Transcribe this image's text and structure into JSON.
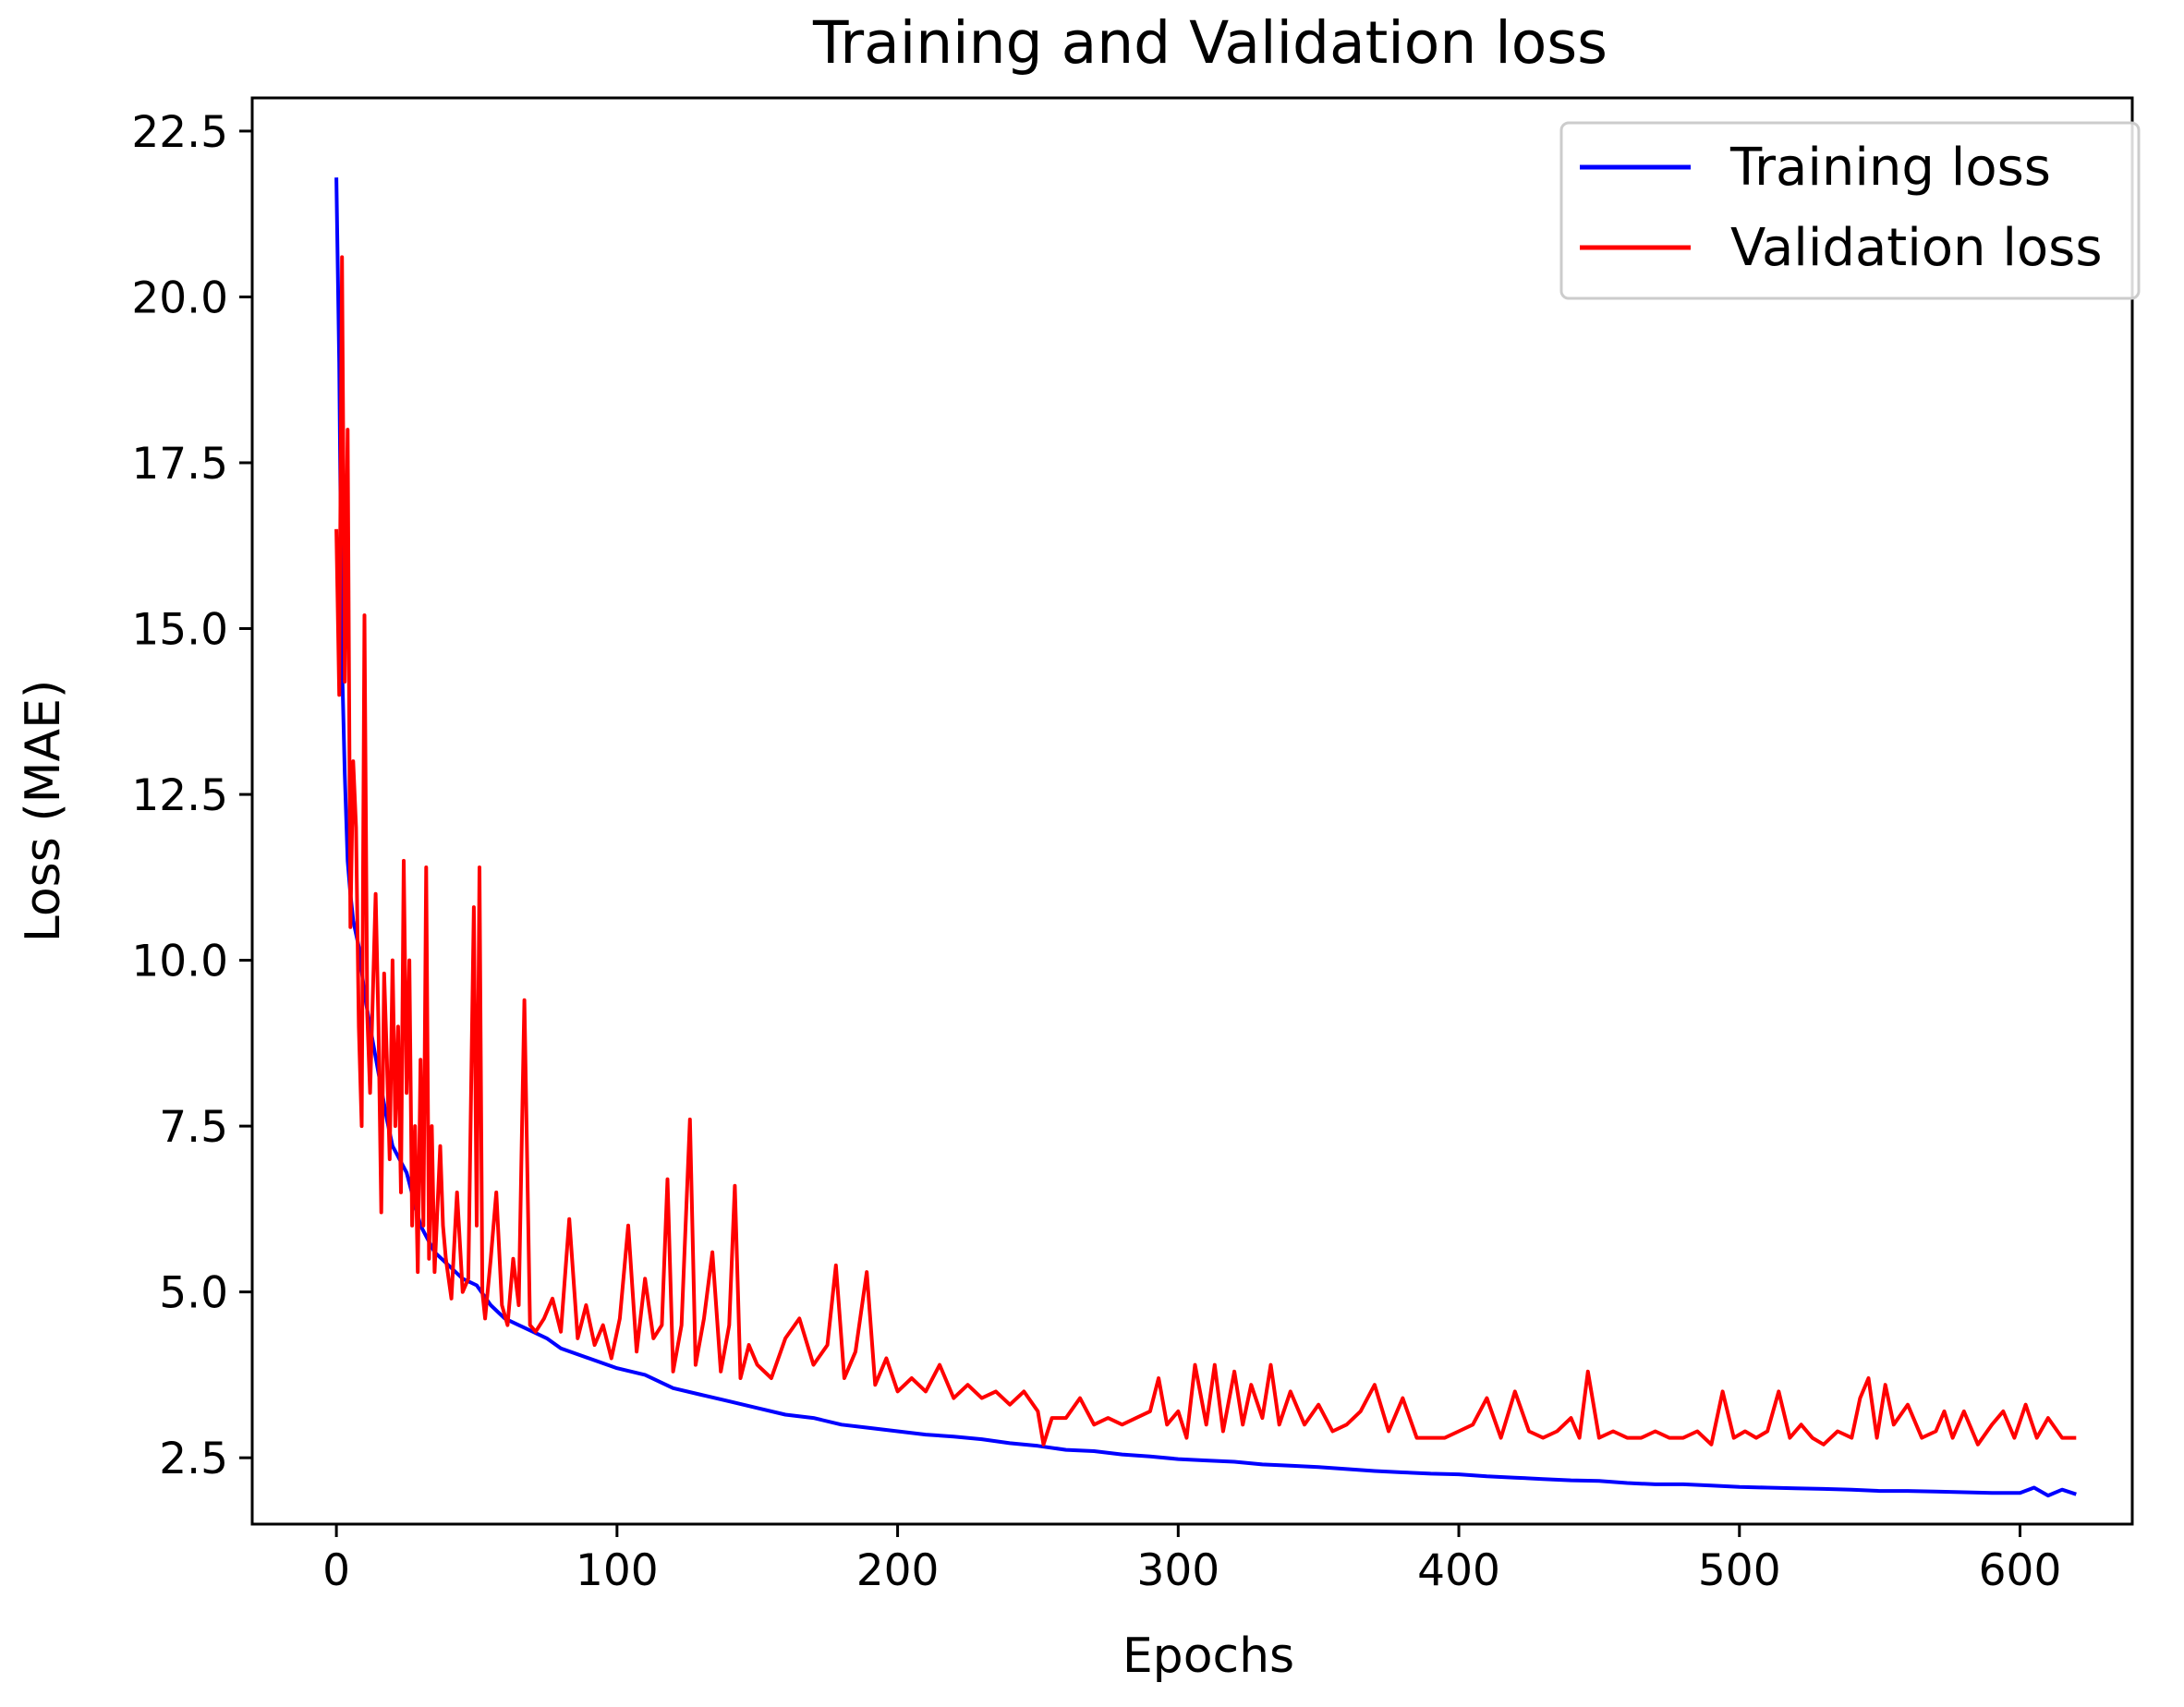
{
  "chart_data": {
    "type": "line",
    "title": "Training and Validation loss",
    "xlabel": "Epochs",
    "ylabel": "Loss (MAE)",
    "xlim": [
      -30,
      640
    ],
    "ylim": [
      1.5,
      23.0
    ],
    "xticks": [
      0,
      100,
      200,
      300,
      400,
      500,
      600
    ],
    "xtick_labels": [
      "0",
      "100",
      "200",
      "300",
      "400",
      "500",
      "600"
    ],
    "yticks": [
      2.5,
      5.0,
      7.5,
      10.0,
      12.5,
      15.0,
      17.5,
      20.0,
      22.5
    ],
    "ytick_labels": [
      "2.5",
      "5.0",
      "7.5",
      "10.0",
      "12.5",
      "15.0",
      "17.5",
      "20.0",
      "22.5"
    ],
    "grid": false,
    "legend_position": "top-right",
    "series": [
      {
        "name": "Training loss",
        "color": "#0000ff",
        "x": [
          0,
          1,
          2,
          3,
          4,
          5,
          6,
          8,
          10,
          12,
          15,
          18,
          20,
          25,
          30,
          35,
          40,
          45,
          50,
          55,
          60,
          65,
          70,
          75,
          80,
          90,
          100,
          110,
          120,
          130,
          140,
          150,
          160,
          170,
          180,
          190,
          200,
          210,
          220,
          230,
          240,
          250,
          260,
          270,
          280,
          290,
          300,
          310,
          320,
          330,
          340,
          350,
          360,
          370,
          380,
          390,
          400,
          410,
          420,
          430,
          440,
          450,
          460,
          470,
          480,
          490,
          500,
          510,
          520,
          530,
          540,
          550,
          560,
          570,
          580,
          590,
          600,
          605,
          610,
          615,
          620
        ],
        "values": [
          21.8,
          19.0,
          14.5,
          12.8,
          11.5,
          11.0,
          10.6,
          10.2,
          9.5,
          9.0,
          8.3,
          7.6,
          7.2,
          6.8,
          6.0,
          5.6,
          5.4,
          5.2,
          5.1,
          4.8,
          4.6,
          4.5,
          4.4,
          4.3,
          4.15,
          4.0,
          3.85,
          3.75,
          3.55,
          3.45,
          3.35,
          3.25,
          3.15,
          3.1,
          3.0,
          2.95,
          2.9,
          2.85,
          2.82,
          2.78,
          2.72,
          2.68,
          2.62,
          2.6,
          2.55,
          2.52,
          2.48,
          2.46,
          2.44,
          2.4,
          2.38,
          2.36,
          2.33,
          2.3,
          2.28,
          2.26,
          2.25,
          2.22,
          2.2,
          2.18,
          2.16,
          2.15,
          2.12,
          2.1,
          2.1,
          2.08,
          2.06,
          2.05,
          2.04,
          2.03,
          2.02,
          2.0,
          2.0,
          1.99,
          1.98,
          1.97,
          1.97,
          2.05,
          1.93,
          2.02,
          1.95
        ]
      },
      {
        "name": "Validation loss",
        "color": "#ff0000",
        "x": [
          0,
          1,
          2,
          3,
          4,
          5,
          6,
          7,
          8,
          9,
          10,
          11,
          12,
          13,
          14,
          15,
          16,
          17,
          18,
          19,
          20,
          21,
          22,
          23,
          24,
          25,
          26,
          27,
          28,
          29,
          30,
          31,
          32,
          33,
          34,
          35,
          37,
          38,
          39,
          41,
          43,
          45,
          47,
          49,
          50,
          51,
          52,
          53,
          55,
          57,
          59,
          61,
          63,
          65,
          67,
          69,
          71,
          74,
          77,
          80,
          83,
          86,
          89,
          92,
          95,
          98,
          101,
          104,
          107,
          110,
          113,
          116,
          118,
          120,
          123,
          126,
          128,
          131,
          134,
          137,
          140,
          142,
          144,
          147,
          150,
          155,
          160,
          165,
          170,
          175,
          178,
          181,
          185,
          189,
          192,
          196,
          200,
          205,
          210,
          215,
          220,
          225,
          230,
          235,
          240,
          245,
          250,
          252,
          255,
          260,
          265,
          270,
          275,
          280,
          285,
          290,
          293,
          296,
          300,
          303,
          306,
          310,
          313,
          316,
          320,
          323,
          326,
          330,
          333,
          336,
          340,
          345,
          350,
          355,
          360,
          365,
          370,
          375,
          380,
          385,
          390,
          395,
          400,
          405,
          410,
          415,
          420,
          425,
          430,
          435,
          440,
          443,
          446,
          450,
          455,
          460,
          465,
          470,
          475,
          480,
          485,
          490,
          494,
          498,
          502,
          506,
          510,
          514,
          518,
          522,
          526,
          530,
          535,
          540,
          543,
          546,
          549,
          552,
          555,
          560,
          565,
          570,
          573,
          576,
          580,
          585,
          590,
          594,
          598,
          602,
          606,
          610,
          615,
          620
        ],
        "values": [
          16.5,
          14.0,
          20.6,
          14.2,
          18.0,
          10.5,
          13.0,
          12.0,
          9.0,
          7.5,
          15.2,
          9.2,
          8.0,
          9.5,
          11.0,
          9.0,
          6.2,
          9.8,
          8.5,
          7.0,
          10.0,
          7.5,
          9.0,
          6.5,
          11.5,
          8.0,
          10.0,
          6.0,
          7.5,
          5.3,
          8.5,
          6.0,
          11.4,
          5.5,
          7.5,
          5.3,
          7.2,
          6.0,
          5.5,
          4.9,
          6.5,
          5.0,
          5.2,
          10.8,
          6.0,
          11.4,
          5.0,
          4.6,
          5.5,
          6.5,
          4.8,
          4.5,
          5.5,
          4.8,
          9.4,
          4.5,
          4.4,
          4.6,
          4.9,
          4.4,
          6.1,
          4.3,
          4.8,
          4.2,
          4.5,
          4.0,
          4.6,
          6.0,
          4.1,
          5.2,
          4.3,
          4.5,
          6.7,
          3.8,
          4.5,
          7.6,
          3.9,
          4.6,
          5.6,
          3.8,
          4.5,
          6.6,
          3.7,
          4.2,
          3.9,
          3.7,
          4.3,
          4.6,
          3.9,
          4.2,
          5.4,
          3.7,
          4.1,
          5.3,
          3.6,
          4.0,
          3.5,
          3.7,
          3.5,
          3.9,
          3.4,
          3.6,
          3.4,
          3.5,
          3.3,
          3.5,
          3.2,
          2.7,
          3.1,
          3.1,
          3.4,
          3.0,
          3.1,
          3.0,
          3.1,
          3.2,
          3.7,
          3.0,
          3.2,
          2.8,
          3.9,
          3.0,
          3.9,
          2.9,
          3.8,
          3.0,
          3.6,
          3.1,
          3.9,
          3.0,
          3.5,
          3.0,
          3.3,
          2.9,
          3.0,
          3.2,
          3.6,
          2.9,
          3.4,
          2.8,
          2.8,
          2.8,
          2.9,
          3.0,
          3.4,
          2.8,
          3.5,
          2.9,
          2.8,
          2.9,
          3.1,
          2.8,
          3.8,
          2.8,
          2.9,
          2.8,
          2.8,
          2.9,
          2.8,
          2.8,
          2.9,
          2.7,
          3.5,
          2.8,
          2.9,
          2.8,
          2.9,
          3.5,
          2.8,
          3.0,
          2.8,
          2.7,
          2.9,
          2.8,
          3.4,
          3.7,
          2.8,
          3.6,
          3.0,
          3.3,
          2.8,
          2.9,
          3.2,
          2.8,
          3.2,
          2.7,
          3.0,
          3.2,
          2.8,
          3.3,
          2.8,
          3.1,
          2.8,
          2.8
        ]
      }
    ]
  }
}
